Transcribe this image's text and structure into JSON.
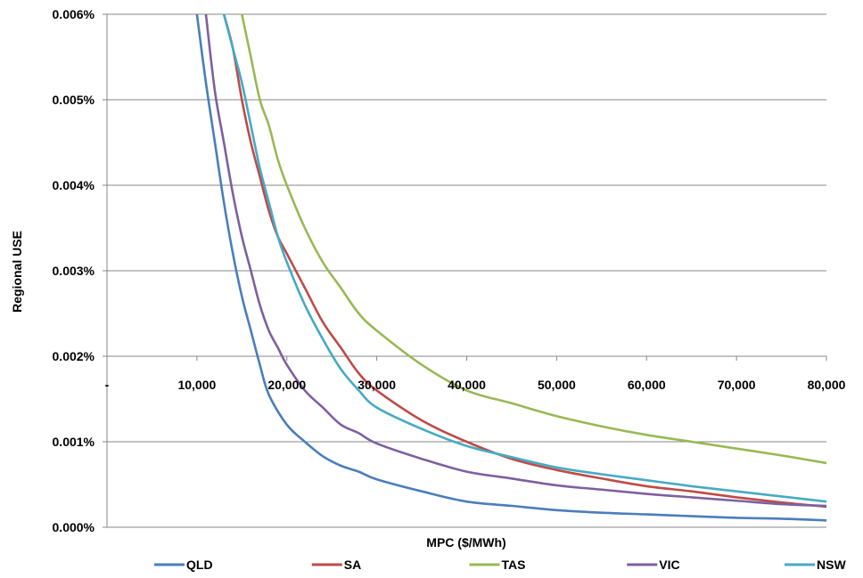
{
  "chart_data": {
    "type": "line",
    "xlabel": "MPC ($/MWh)",
    "ylabel": "Regional USE",
    "xlim": [
      0,
      80000
    ],
    "ylim": [
      0,
      0.006
    ],
    "x_ticks": [
      0,
      10000,
      20000,
      30000,
      40000,
      50000,
      60000,
      70000,
      80000
    ],
    "x_tick_labels": [
      "-",
      "10,000",
      "20,000",
      "30,000",
      "40,000",
      "50,000",
      "60,000",
      "70,000",
      "80,000"
    ],
    "x_axis_crosses_y_at": 0.002,
    "y_ticks": [
      0,
      0.001,
      0.002,
      0.003,
      0.004,
      0.005,
      0.006
    ],
    "y_tick_labels": [
      "0.000%",
      "0.001%",
      "0.002%",
      "0.003%",
      "0.004%",
      "0.005%",
      "0.006%"
    ],
    "grid": "horizontal",
    "legend": "bottom",
    "series": [
      {
        "name": "QLD",
        "color": "#4A7EBB",
        "x": [
          10000,
          11000,
          12000,
          13000,
          14000,
          15000,
          16000,
          17000,
          18000,
          20000,
          22000,
          24000,
          26000,
          28000,
          30000,
          35000,
          40000,
          45000,
          50000,
          55000,
          60000,
          65000,
          70000,
          75000,
          80000
        ],
        "y": [
          0.006,
          0.0052,
          0.0045,
          0.0038,
          0.0032,
          0.0027,
          0.0023,
          0.0019,
          0.00155,
          0.0012,
          0.001,
          0.00083,
          0.00072,
          0.00065,
          0.00056,
          0.00042,
          0.0003,
          0.00025,
          0.0002,
          0.00017,
          0.00015,
          0.00013,
          0.00011,
          0.0001,
          8e-05
        ]
      },
      {
        "name": "SA",
        "color": "#BE4B48",
        "x": [
          13000,
          14000,
          15000,
          16000,
          17000,
          18000,
          19000,
          20000,
          22000,
          24000,
          26000,
          28000,
          30000,
          35000,
          40000,
          45000,
          50000,
          55000,
          60000,
          65000,
          70000,
          75000,
          80000
        ],
        "y": [
          0.006,
          0.0056,
          0.005,
          0.0045,
          0.0041,
          0.0037,
          0.0034,
          0.0032,
          0.0028,
          0.0024,
          0.0021,
          0.0018,
          0.0016,
          0.00125,
          0.001,
          0.0008,
          0.00067,
          0.00057,
          0.00048,
          0.00042,
          0.00035,
          0.00029,
          0.00024
        ]
      },
      {
        "name": "TAS",
        "color": "#98B954",
        "x": [
          15000,
          16000,
          17000,
          18000,
          19000,
          20000,
          22000,
          24000,
          26000,
          28000,
          30000,
          35000,
          40000,
          45000,
          50000,
          55000,
          60000,
          65000,
          70000,
          75000,
          80000
        ],
        "y": [
          0.006,
          0.0055,
          0.005,
          0.0047,
          0.0043,
          0.004,
          0.0035,
          0.0031,
          0.0028,
          0.0025,
          0.0023,
          0.0019,
          0.0016,
          0.00145,
          0.0013,
          0.00118,
          0.00108,
          0.001,
          0.00092,
          0.00084,
          0.00075
        ]
      },
      {
        "name": "VIC",
        "color": "#7D60A0",
        "x": [
          11000,
          12000,
          13000,
          14000,
          15000,
          16000,
          17000,
          18000,
          19000,
          20000,
          22000,
          24000,
          26000,
          28000,
          30000,
          35000,
          40000,
          45000,
          50000,
          55000,
          60000,
          65000,
          70000,
          75000,
          80000
        ],
        "y": [
          0.006,
          0.0051,
          0.0045,
          0.0039,
          0.0034,
          0.003,
          0.0026,
          0.0023,
          0.0021,
          0.0019,
          0.0016,
          0.0014,
          0.0012,
          0.0011,
          0.00098,
          0.0008,
          0.00065,
          0.00057,
          0.00049,
          0.00044,
          0.00039,
          0.00035,
          0.00031,
          0.00027,
          0.00025
        ]
      },
      {
        "name": "NSW",
        "color": "#46AAC5",
        "x": [
          13000,
          14000,
          15000,
          16000,
          17000,
          18000,
          19000,
          20000,
          22000,
          24000,
          26000,
          28000,
          30000,
          35000,
          40000,
          45000,
          50000,
          55000,
          60000,
          65000,
          70000,
          75000,
          80000
        ],
        "y": [
          0.006,
          0.0056,
          0.0052,
          0.0047,
          0.0042,
          0.0038,
          0.0034,
          0.0031,
          0.0026,
          0.0022,
          0.00185,
          0.0016,
          0.0014,
          0.00115,
          0.00095,
          0.00082,
          0.0007,
          0.00062,
          0.00055,
          0.00048,
          0.00042,
          0.00036,
          0.0003
        ]
      }
    ]
  }
}
